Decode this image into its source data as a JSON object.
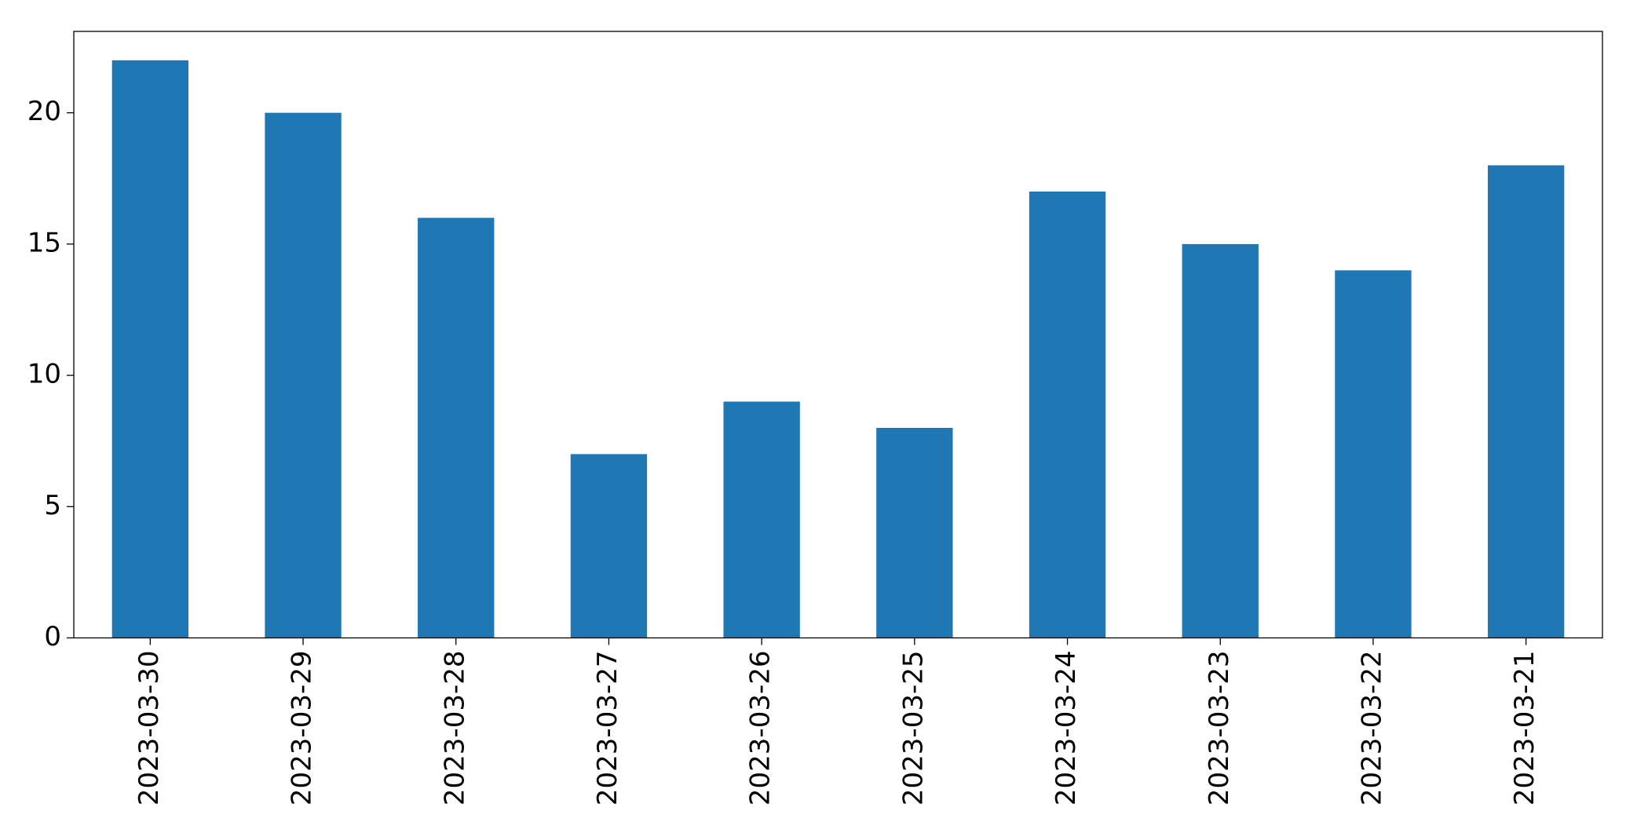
{
  "chart_data": {
    "type": "bar",
    "categories": [
      "2023-03-30",
      "2023-03-29",
      "2023-03-28",
      "2023-03-27",
      "2023-03-26",
      "2023-03-25",
      "2023-03-24",
      "2023-03-23",
      "2023-03-22",
      "2023-03-21"
    ],
    "values": [
      22,
      20,
      16,
      7,
      9,
      8,
      17,
      15,
      14,
      18
    ],
    "color": "#1f77b4",
    "ylim": [
      0,
      23.1
    ],
    "yticks": [
      0,
      5,
      10,
      15,
      20
    ],
    "grid": false
  }
}
